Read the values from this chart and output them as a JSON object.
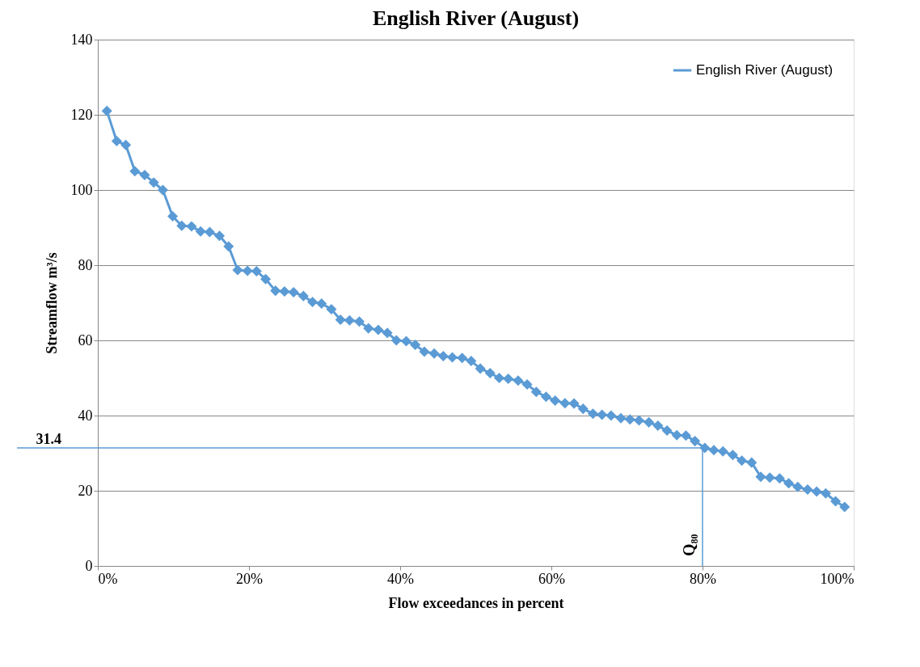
{
  "chart_data": {
    "type": "line",
    "title": "English River (August)",
    "xlabel": "Flow exceedances in percent",
    "ylabel": "Streamflow m³/s",
    "x": [
      1.2,
      2.5,
      3.7,
      4.9,
      6.2,
      7.4,
      8.6,
      9.9,
      11.1,
      12.4,
      13.6,
      14.8,
      16.1,
      17.3,
      18.5,
      19.8,
      21.0,
      22.2,
      23.5,
      24.7,
      25.9,
      27.2,
      28.4,
      29.6,
      30.9,
      32.1,
      33.3,
      34.6,
      35.8,
      37.1,
      38.3,
      39.5,
      40.8,
      42.0,
      43.2,
      44.5,
      45.7,
      46.9,
      48.2,
      49.4,
      50.6,
      51.9,
      53.1,
      54.3,
      55.6,
      56.8,
      58.0,
      59.3,
      60.5,
      61.8,
      63.0,
      64.2,
      65.5,
      66.7,
      67.9,
      69.2,
      70.4,
      71.6,
      72.9,
      74.1,
      75.3,
      76.6,
      77.8,
      79.0,
      80.3,
      81.5,
      82.7,
      84.0,
      85.2,
      86.5,
      87.7,
      88.9,
      90.2,
      91.4,
      92.6,
      93.9,
      95.1,
      96.3,
      97.6,
      98.8
    ],
    "series": [
      {
        "name": "English River (August)",
        "color": "#5b9bd5",
        "values": [
          121,
          113,
          112,
          105,
          104,
          102,
          100,
          93,
          90.5,
          90.3,
          89,
          88.8,
          87.8,
          85,
          78.7,
          78.5,
          78.4,
          76.3,
          73.2,
          73,
          72.8,
          71.8,
          70.2,
          69.8,
          68.3,
          65.5,
          65.3,
          65,
          63.2,
          62.8,
          62,
          60,
          59.8,
          58.8,
          57,
          56.5,
          55.8,
          55.5,
          55.3,
          54.5,
          52.5,
          51.3,
          50,
          49.8,
          49.3,
          48.3,
          46.3,
          45,
          44,
          43.3,
          43.2,
          41.8,
          40.5,
          40.2,
          40,
          39.3,
          39,
          38.7,
          38.2,
          37.3,
          36,
          34.8,
          34.7,
          33.2,
          31.4,
          30.8,
          30.5,
          29.5,
          28,
          27.5,
          23.7,
          23.5,
          23.3,
          22,
          21,
          20.3,
          19.8,
          19.3,
          17.2,
          15.7
        ]
      }
    ],
    "xlim": [
      0,
      100
    ],
    "xticks": [
      {
        "value": 0,
        "label": "0%"
      },
      {
        "value": 20,
        "label": "20%"
      },
      {
        "value": 40,
        "label": "40%"
      },
      {
        "value": 60,
        "label": "60%"
      },
      {
        "value": 80,
        "label": "80%"
      },
      {
        "value": 100,
        "label": "100%"
      }
    ],
    "ylim": [
      0,
      140
    ],
    "yticks": [
      0,
      20,
      40,
      60,
      80,
      100,
      120,
      140
    ],
    "grid": "y",
    "legend": "top right",
    "marker": "diamond",
    "line_style": "solid",
    "ref_lines": [
      {
        "axis": "y",
        "value": 31.4,
        "label": "31.4",
        "color": "#5b9bd5"
      },
      {
        "axis": "x",
        "value": 80,
        "label": "Q₈₀",
        "color": "#5b9bd5"
      }
    ]
  }
}
